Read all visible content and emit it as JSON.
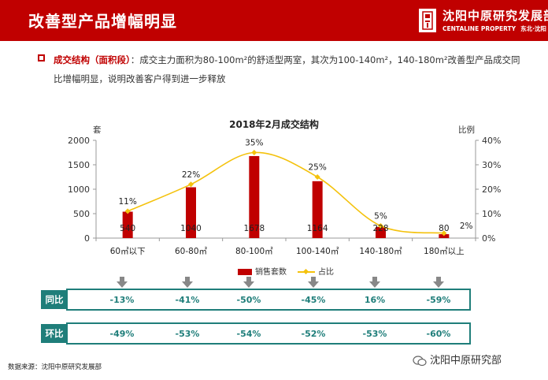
{
  "header": {
    "title": "改善型产品增幅明显",
    "logo_name": "沈阳中原研究发展部",
    "logo_english": "CENTALINE PROPERTY",
    "logo_cities": "东北·沈阳"
  },
  "summary": {
    "heading": "成交结构（面积段）",
    "text": "：成交主力面积为80-100m²的舒适型两室，其次为100-140m²，140-180m²改善型产品成交同比增幅明显，说明改善客户得到进一步释放"
  },
  "chart_data": {
    "type": "bar",
    "title": "2018年2月成交结构",
    "ylabel": "套",
    "y2label": "比例",
    "categories": [
      "60㎡以下",
      "60-80㎡",
      "80-100㎡",
      "100-140㎡",
      "140-180㎡",
      "180㎡以上"
    ],
    "ylim": [
      0,
      2000
    ],
    "yticks": [
      0,
      500,
      1000,
      1500,
      2000
    ],
    "y2lim": [
      0,
      40
    ],
    "y2ticks": [
      "0%",
      "10%",
      "20%",
      "30%",
      "40%"
    ],
    "series": [
      {
        "name": "销售套数",
        "type": "bar",
        "axis": "left",
        "values": [
          540,
          1040,
          1678,
          1164,
          228,
          80
        ],
        "labels": [
          "540",
          "1040",
          "1678",
          "1164",
          "228",
          "80"
        ]
      },
      {
        "name": "占比",
        "type": "line",
        "axis": "right",
        "values": [
          11,
          22,
          35,
          25,
          5,
          2
        ],
        "labels": [
          "11%",
          "22%",
          "35%",
          "25%",
          "5%",
          "2%"
        ]
      }
    ],
    "legend": "bottom",
    "grid": false,
    "colors": {
      "bar": "#c00000",
      "line": "#f4c20d"
    }
  },
  "comparison": {
    "yoy": {
      "label": "同比",
      "values": [
        "-13%",
        "-41%",
        "-50%",
        "-45%",
        "16%",
        "-59%"
      ]
    },
    "mom": {
      "label": "环比",
      "values": [
        "-49%",
        "-53%",
        "-54%",
        "-52%",
        "-53%",
        "-60%"
      ]
    },
    "color": "#1f7e7a"
  },
  "footer": {
    "source": "数据来源：沈阳中原研究发展部",
    "watermark": "沈阳中原研究部"
  }
}
